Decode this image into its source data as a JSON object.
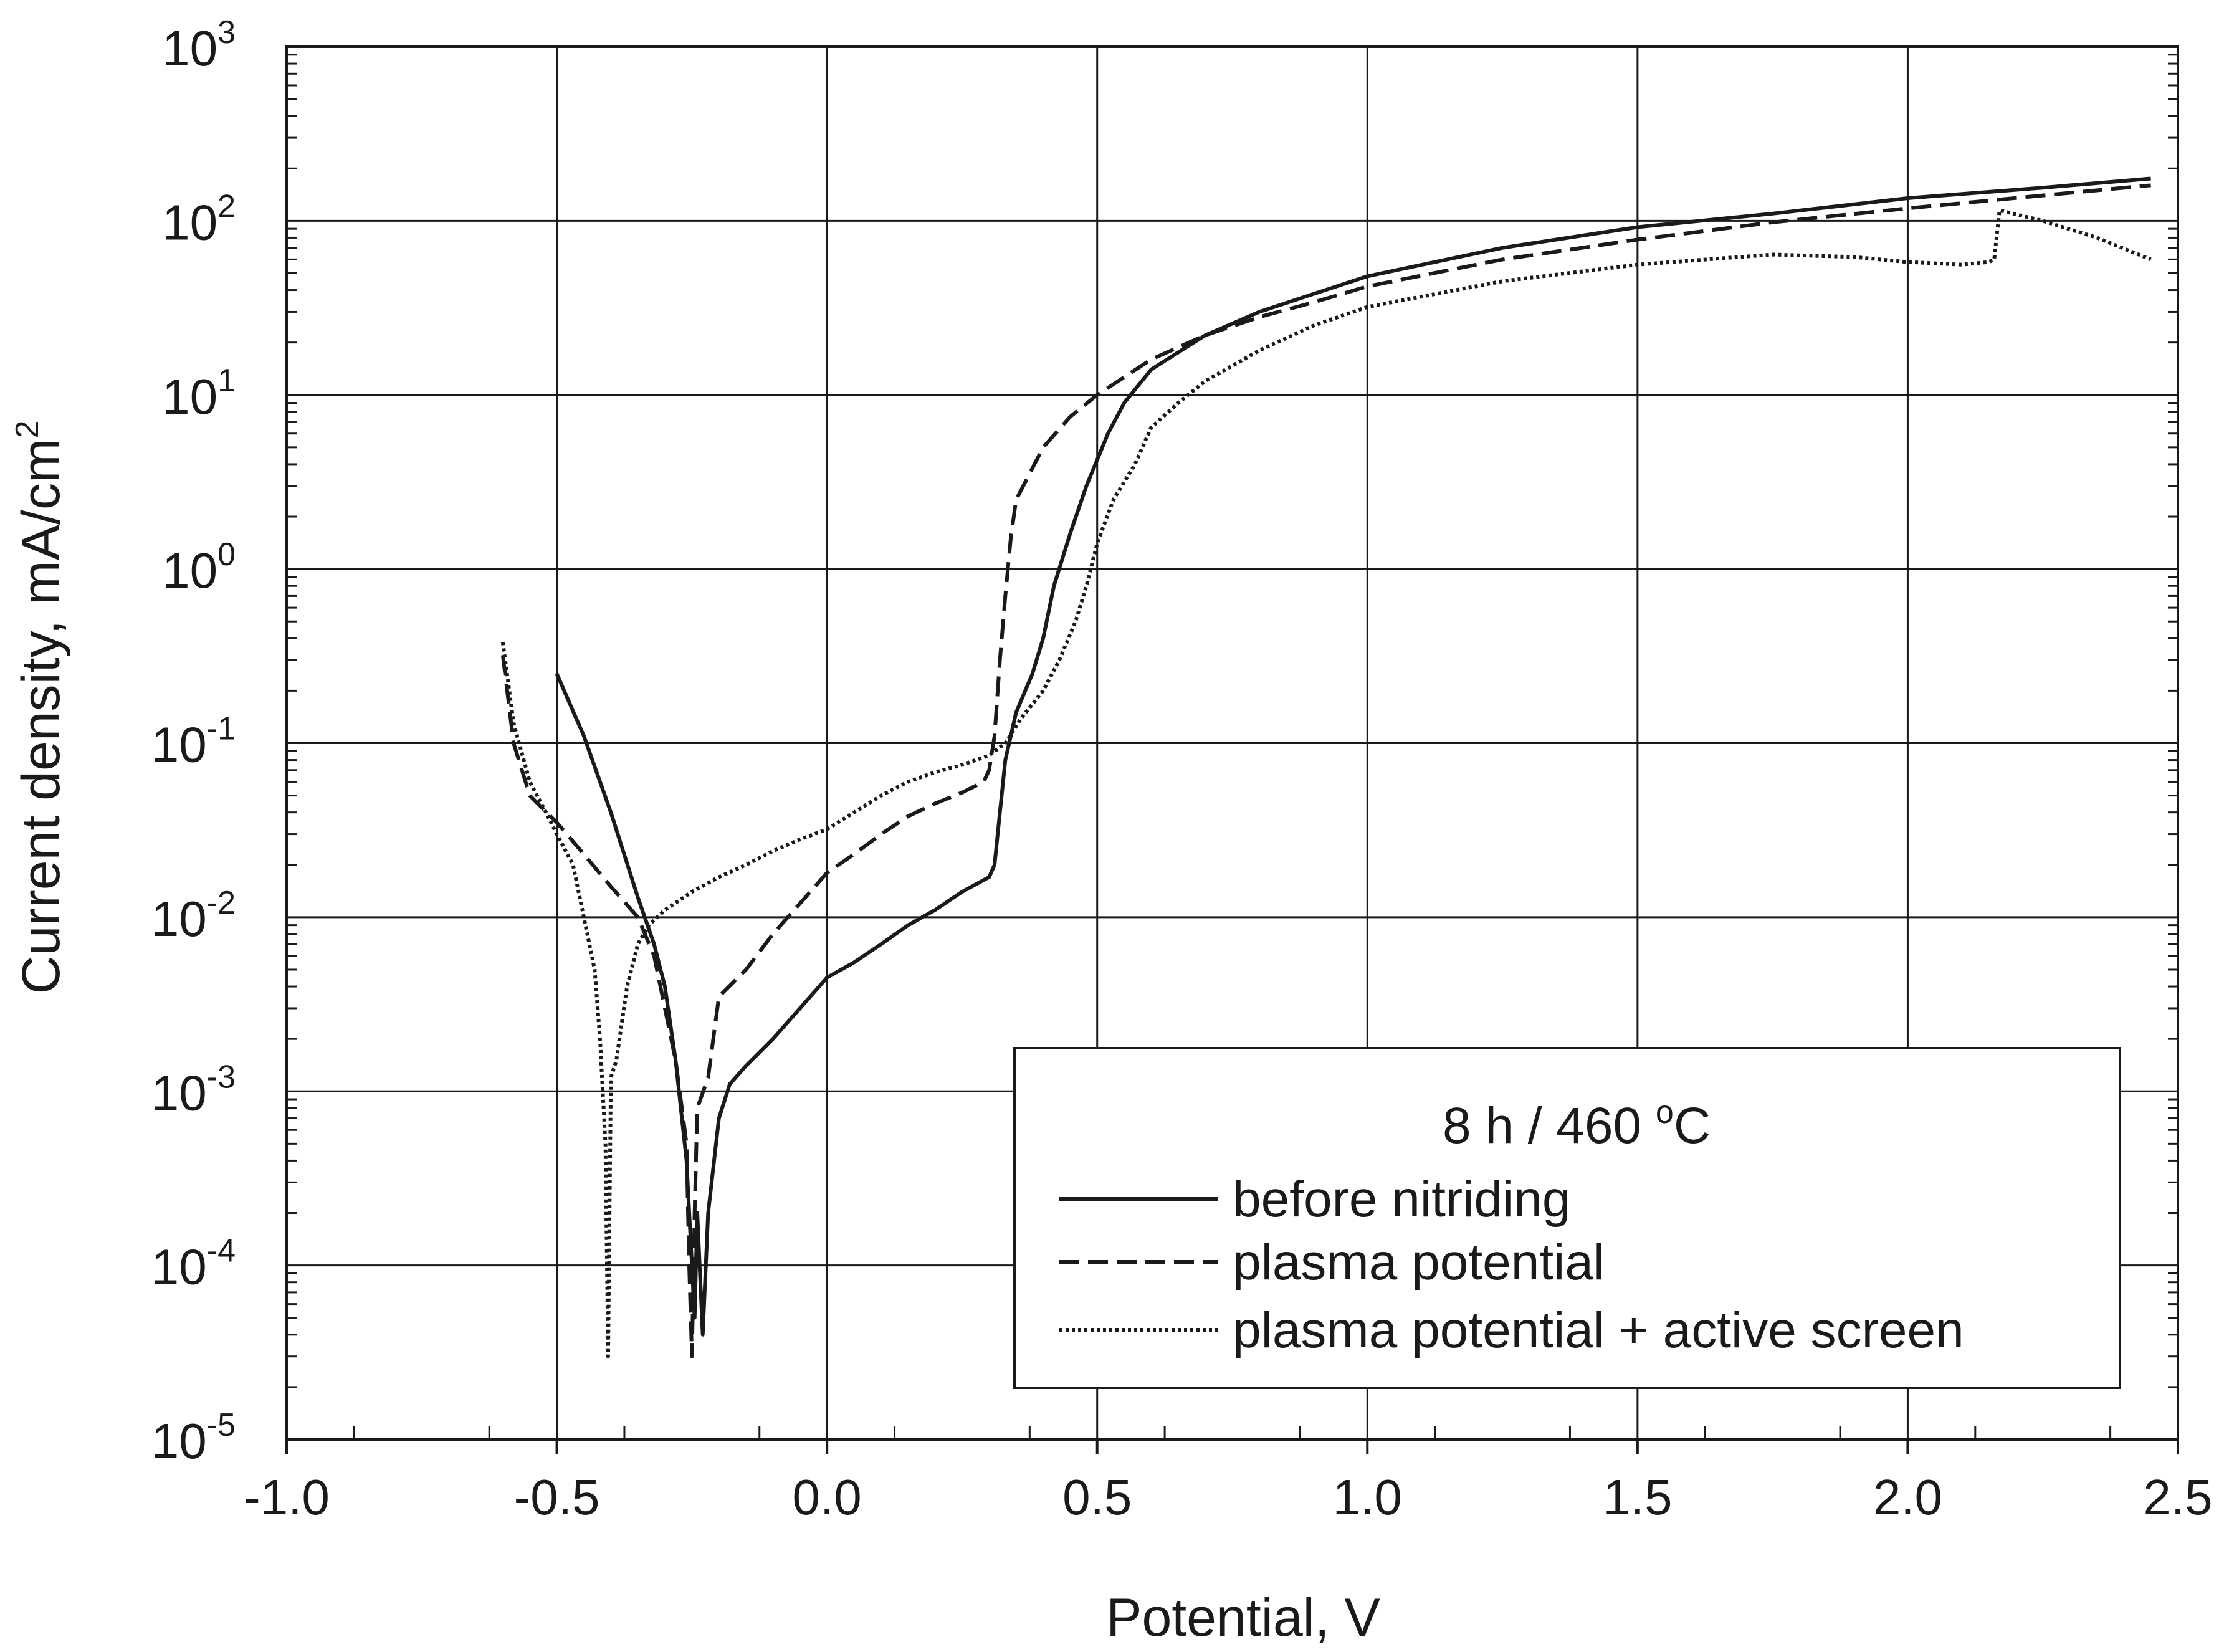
{
  "chart_data": {
    "type": "line",
    "title": "",
    "xlabel": "Potential, V",
    "ylabel": "Current density, mA/cm",
    "ylabel_sup": "2",
    "xlim": [
      -1.0,
      2.5
    ],
    "ylim_log10": [
      -5,
      3
    ],
    "y_scale": "log",
    "grid": true,
    "x_ticks": [
      -1.0,
      -0.5,
      0.0,
      0.5,
      1.0,
      1.5,
      2.0,
      2.5
    ],
    "x_tick_labels": [
      "-1.0",
      "-0.5",
      "0.0",
      "0.5",
      "1.0",
      "1.5",
      "2.0",
      "2.5"
    ],
    "y_tick_base": "10",
    "y_tick_exponents": [
      "-5",
      "-4",
      "-3",
      "-2",
      "-1",
      "0",
      "1",
      "2",
      "3"
    ],
    "legend": {
      "position": "bottom-right",
      "title_main": "8 h / 460 ",
      "title_sup": "o",
      "title_unit": "C"
    },
    "series": [
      {
        "name": "before nitriding",
        "style": "solid",
        "points": [
          [
            -0.5,
            0.25
          ],
          [
            -0.45,
            0.11
          ],
          [
            -0.4,
            0.04
          ],
          [
            -0.35,
            0.013
          ],
          [
            -0.32,
            0.007
          ],
          [
            -0.3,
            0.004
          ],
          [
            -0.28,
            0.0015
          ],
          [
            -0.26,
            0.0004
          ],
          [
            -0.25,
            0.0001
          ],
          [
            -0.245,
            5e-05
          ],
          [
            -0.24,
            0.0002
          ],
          [
            -0.23,
            4e-05
          ],
          [
            -0.22,
            0.0002
          ],
          [
            -0.2,
            0.0007
          ],
          [
            -0.18,
            0.0011
          ],
          [
            -0.15,
            0.0014
          ],
          [
            -0.1,
            0.002
          ],
          [
            -0.05,
            0.003
          ],
          [
            0.0,
            0.0045
          ],
          [
            0.05,
            0.0055
          ],
          [
            0.1,
            0.007
          ],
          [
            0.15,
            0.009
          ],
          [
            0.2,
            0.011
          ],
          [
            0.25,
            0.014
          ],
          [
            0.3,
            0.017
          ],
          [
            0.31,
            0.02
          ],
          [
            0.32,
            0.04
          ],
          [
            0.33,
            0.08
          ],
          [
            0.35,
            0.15
          ],
          [
            0.38,
            0.25
          ],
          [
            0.4,
            0.4
          ],
          [
            0.42,
            0.8
          ],
          [
            0.45,
            1.6
          ],
          [
            0.48,
            3.0
          ],
          [
            0.52,
            6.0
          ],
          [
            0.55,
            9.0
          ],
          [
            0.6,
            14
          ],
          [
            0.7,
            22
          ],
          [
            0.8,
            30
          ],
          [
            0.9,
            38
          ],
          [
            1.0,
            48
          ],
          [
            1.25,
            70
          ],
          [
            1.5,
            92
          ],
          [
            1.75,
            110
          ],
          [
            2.0,
            135
          ],
          [
            2.25,
            155
          ],
          [
            2.45,
            175
          ]
        ]
      },
      {
        "name": "plasma potential",
        "style": "dashed",
        "points": [
          [
            -0.6,
            0.32
          ],
          [
            -0.58,
            0.1
          ],
          [
            -0.55,
            0.05
          ],
          [
            -0.5,
            0.035
          ],
          [
            -0.45,
            0.023
          ],
          [
            -0.4,
            0.015
          ],
          [
            -0.35,
            0.01
          ],
          [
            -0.32,
            0.006
          ],
          [
            -0.3,
            0.003
          ],
          [
            -0.28,
            0.0015
          ],
          [
            -0.26,
            0.0005
          ],
          [
            -0.255,
            0.0001
          ],
          [
            -0.25,
            3e-05
          ],
          [
            -0.245,
            0.0002
          ],
          [
            -0.24,
            0.0008
          ],
          [
            -0.22,
            0.0012
          ],
          [
            -0.2,
            0.0035
          ],
          [
            -0.15,
            0.005
          ],
          [
            -0.1,
            0.008
          ],
          [
            -0.05,
            0.012
          ],
          [
            0.0,
            0.018
          ],
          [
            0.05,
            0.023
          ],
          [
            0.1,
            0.03
          ],
          [
            0.15,
            0.038
          ],
          [
            0.2,
            0.045
          ],
          [
            0.25,
            0.052
          ],
          [
            0.29,
            0.06
          ],
          [
            0.3,
            0.07
          ],
          [
            0.31,
            0.11
          ],
          [
            0.32,
            0.3
          ],
          [
            0.33,
            0.7
          ],
          [
            0.34,
            1.5
          ],
          [
            0.35,
            2.5
          ],
          [
            0.4,
            5.0
          ],
          [
            0.45,
            7.5
          ],
          [
            0.5,
            10
          ],
          [
            0.6,
            16
          ],
          [
            0.7,
            22
          ],
          [
            0.8,
            28
          ],
          [
            0.9,
            34
          ],
          [
            1.0,
            42
          ],
          [
            1.25,
            60
          ],
          [
            1.5,
            78
          ],
          [
            1.75,
            98
          ],
          [
            2.0,
            118
          ],
          [
            2.25,
            140
          ],
          [
            2.45,
            160
          ]
        ]
      },
      {
        "name": "plasma potential + active screen",
        "style": "dotted",
        "points": [
          [
            -0.6,
            0.38
          ],
          [
            -0.58,
            0.13
          ],
          [
            -0.55,
            0.06
          ],
          [
            -0.52,
            0.04
          ],
          [
            -0.5,
            0.03
          ],
          [
            -0.47,
            0.02
          ],
          [
            -0.45,
            0.01
          ],
          [
            -0.43,
            0.005
          ],
          [
            -0.42,
            0.002
          ],
          [
            -0.41,
            0.0005
          ],
          [
            -0.405,
            3e-05
          ],
          [
            -0.4,
            0.0012
          ],
          [
            -0.39,
            0.0015
          ],
          [
            -0.37,
            0.004
          ],
          [
            -0.35,
            0.007
          ],
          [
            -0.33,
            0.009
          ],
          [
            -0.3,
            0.011
          ],
          [
            -0.25,
            0.014
          ],
          [
            -0.2,
            0.017
          ],
          [
            -0.15,
            0.02
          ],
          [
            -0.1,
            0.024
          ],
          [
            -0.05,
            0.028
          ],
          [
            0.0,
            0.032
          ],
          [
            0.05,
            0.04
          ],
          [
            0.1,
            0.05
          ],
          [
            0.15,
            0.06
          ],
          [
            0.2,
            0.068
          ],
          [
            0.25,
            0.075
          ],
          [
            0.3,
            0.085
          ],
          [
            0.33,
            0.1
          ],
          [
            0.36,
            0.14
          ],
          [
            0.4,
            0.2
          ],
          [
            0.43,
            0.3
          ],
          [
            0.46,
            0.5
          ],
          [
            0.48,
            0.8
          ],
          [
            0.5,
            1.4
          ],
          [
            0.53,
            2.5
          ],
          [
            0.57,
            4.0
          ],
          [
            0.6,
            6.5
          ],
          [
            0.65,
            9.0
          ],
          [
            0.7,
            12
          ],
          [
            0.8,
            18
          ],
          [
            0.9,
            25
          ],
          [
            1.0,
            32
          ],
          [
            1.25,
            45
          ],
          [
            1.5,
            56
          ],
          [
            1.75,
            64
          ],
          [
            1.9,
            62
          ],
          [
            2.0,
            58
          ],
          [
            2.1,
            56
          ],
          [
            2.15,
            58
          ],
          [
            2.16,
            60
          ],
          [
            2.17,
            115
          ],
          [
            2.25,
            100
          ],
          [
            2.35,
            80
          ],
          [
            2.45,
            60
          ]
        ]
      }
    ]
  }
}
